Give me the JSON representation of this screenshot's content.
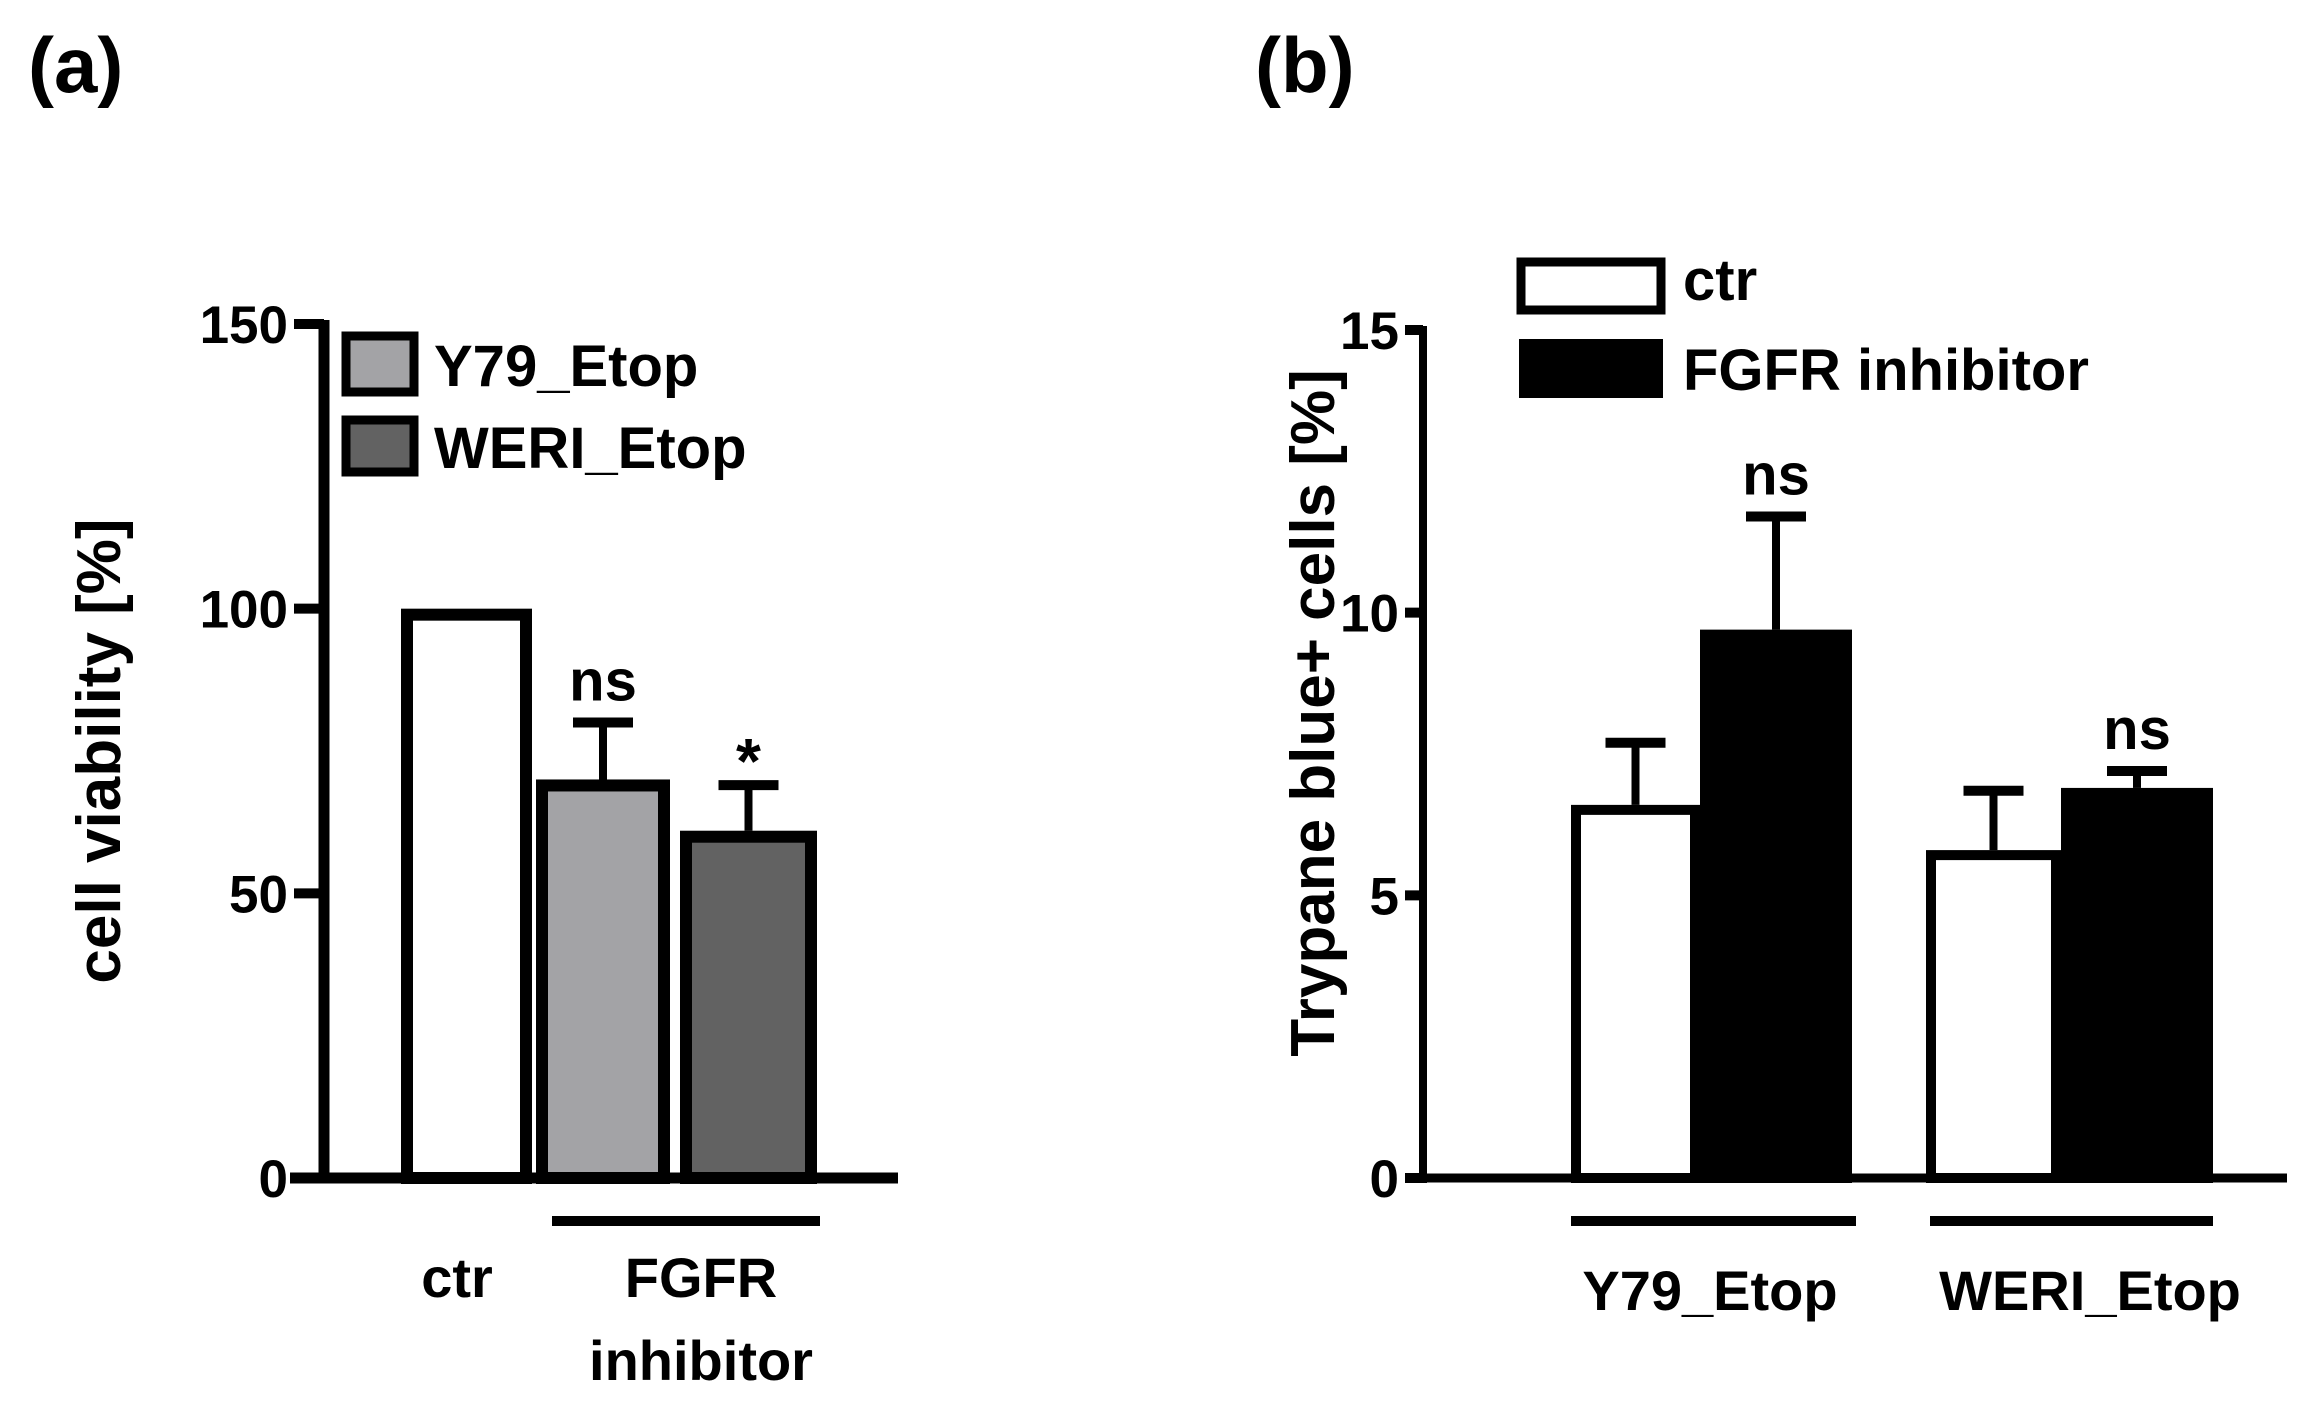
{
  "chart_data": [
    {
      "type": "bar",
      "panel_label": "(a)",
      "ylabel": "cell viability [%]",
      "ylim": [
        0,
        150
      ],
      "yticks": [
        "0",
        "50",
        "100",
        "150"
      ],
      "categories": [
        "ctr",
        "FGFR inhibitor"
      ],
      "group_labels": {
        "ctr": "ctr",
        "fgfr_line1": "FGFR",
        "fgfr_line2": "inhibitor"
      },
      "legend": [
        "Y79_Etop",
        "WERI_Etop"
      ],
      "legend_position": "top-left",
      "bars": [
        {
          "group": "ctr",
          "value": 100,
          "error": null,
          "color": "#ffffff",
          "annotation": ""
        },
        {
          "group": "FGFR inhibitor",
          "series": "Y79_Etop",
          "value": 70,
          "error": 10,
          "color": "#a3a3a6",
          "annotation": "ns"
        },
        {
          "group": "FGFR inhibitor",
          "series": "WERI_Etop",
          "value": 61,
          "error": 8,
          "color": "#626262",
          "annotation": "*"
        }
      ]
    },
    {
      "type": "bar",
      "panel_label": "(b)",
      "ylabel": "Trypane blue+ cells [%]",
      "ylim": [
        0,
        15
      ],
      "yticks": [
        "0",
        "5",
        "10",
        "15"
      ],
      "categories": [
        "Y79_Etop",
        "WERI_Etop"
      ],
      "legend": [
        "ctr",
        "FGFR inhibitor"
      ],
      "legend_position": "top-left",
      "colors": {
        "ctr": "#ffffff",
        "FGFR inhibitor": "#000000"
      },
      "series": [
        {
          "name": "ctr",
          "values": [
            6.6,
            5.8
          ],
          "errors": [
            1.1,
            1.05
          ],
          "annotations": [
            "",
            ""
          ]
        },
        {
          "name": "FGFR inhibitor",
          "values": [
            9.7,
            6.9
          ],
          "errors": [
            2.0,
            0.3
          ],
          "annotations": [
            "ns",
            "ns"
          ]
        }
      ]
    }
  ]
}
